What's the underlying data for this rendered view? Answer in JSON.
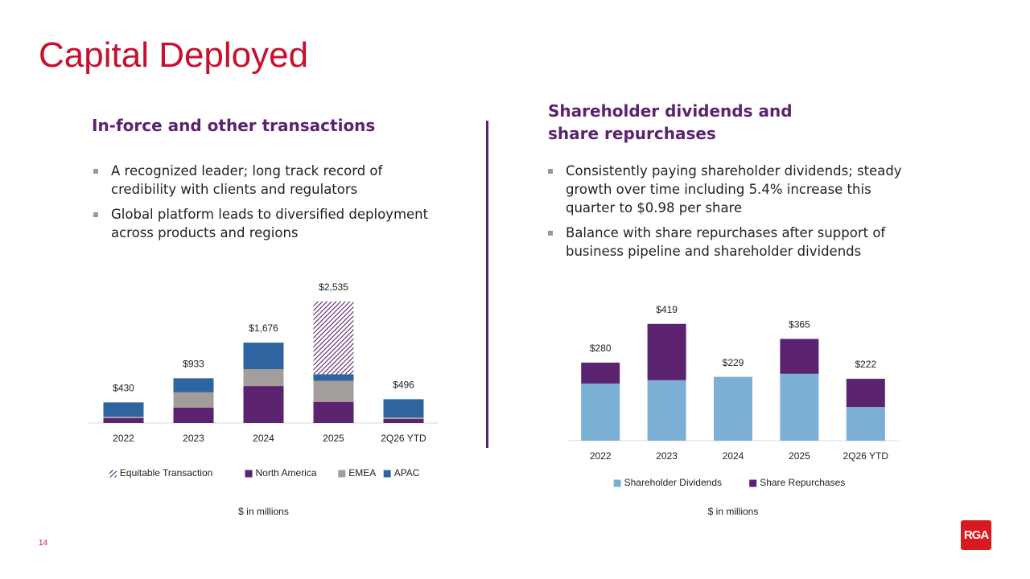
{
  "slide": {
    "title": "Capital Deployed",
    "left": {
      "heading": "In-force and other transactions",
      "bullets": [
        "A recognized leader; long track record of credibility with clients and regulators",
        "Global platform leads to diversified deployment across products and regions"
      ]
    },
    "right": {
      "heading_lines": [
        "Shareholder dividends and",
        "share repurchases"
      ],
      "bullets": [
        "Consistently paying shareholder dividends; steady growth over time including 5.4% increase this quarter to $0.98 per share",
        "Balance with share repurchases after support of business pipeline and shareholder dividends"
      ]
    },
    "page_number": "14",
    "logo": "RGA"
  },
  "chart_data": [
    {
      "type": "stacked-bar",
      "categories": [
        "2022",
        "2023",
        "2024",
        "2025",
        "2Q26 YTD"
      ],
      "series": [
        {
          "name": "North America",
          "color": "#5b2270",
          "values": [
            100,
            320,
            770,
            440,
            85
          ]
        },
        {
          "name": "EMEA",
          "color": "#a39d9b",
          "values": [
            30,
            320,
            350,
            440,
            30
          ]
        },
        {
          "name": "APAC",
          "color": "#2e64a0",
          "values": [
            300,
            293,
            556,
            135,
            381
          ]
        },
        {
          "name": "Equitable Transaction",
          "color": "#5b2270",
          "hatch": true,
          "values": [
            0,
            0,
            0,
            1520,
            0
          ]
        }
      ],
      "legend_order": [
        3,
        0,
        1,
        2
      ],
      "totals": [
        430,
        933,
        1676,
        2535,
        496
      ],
      "total_labels": [
        "$430",
        "$933",
        "$1,676",
        "$2,535",
        "$496"
      ],
      "ylim": [
        0,
        2700
      ],
      "note": "$ in millions"
    },
    {
      "type": "stacked-bar",
      "categories": [
        "2022",
        "2023",
        "2024",
        "2025",
        "2Q26 YTD"
      ],
      "series": [
        {
          "name": "Shareholder Dividends",
          "color": "#7bafd4",
          "values": [
            205,
            217,
            229,
            240,
            121
          ]
        },
        {
          "name": "Share Repurchases",
          "color": "#5b2270",
          "values": [
            75,
            202,
            0,
            125,
            101
          ]
        }
      ],
      "legend_order": [
        0,
        1
      ],
      "totals": [
        280,
        419,
        229,
        365,
        222
      ],
      "total_labels": [
        "$280",
        "$419",
        "$229",
        "$365",
        "$222"
      ],
      "ylim": [
        0,
        450
      ],
      "note": "$ in millions"
    }
  ]
}
